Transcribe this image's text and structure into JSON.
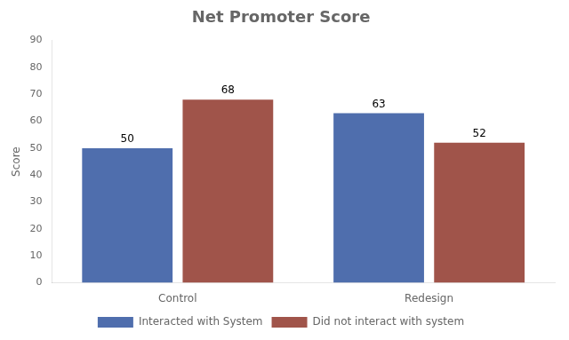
{
  "chart_data": {
    "type": "bar",
    "title": "Net Promoter Score",
    "ylabel": "Score",
    "categories": [
      "Control",
      "Redesign"
    ],
    "series": [
      {
        "name": "Interacted with System",
        "color": "#4F6EAD",
        "values": [
          50,
          63
        ]
      },
      {
        "name": "Did not interact with system",
        "color": "#A0544A",
        "values": [
          68,
          52
        ]
      }
    ],
    "ylim": [
      0,
      90
    ],
    "yticks": [
      0,
      10,
      20,
      30,
      40,
      50,
      60,
      70,
      80,
      90
    ],
    "grid": false,
    "legend": "bottom",
    "data_labels": true
  }
}
